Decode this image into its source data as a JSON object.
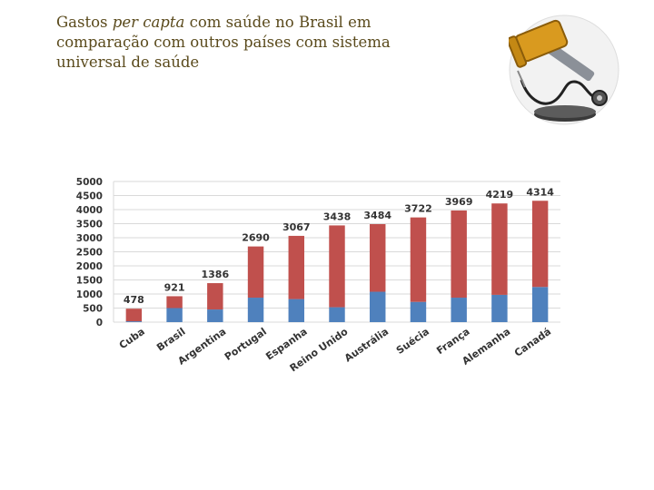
{
  "title": {
    "part1": "Gastos ",
    "italic": "per capta",
    "part2": " com saúde no Brasil em comparação com outros países com sistema universal de saúde"
  },
  "illustration": {
    "icon": "gavel-and-stethoscope-icon"
  },
  "chart_data": {
    "type": "bar",
    "stacked": true,
    "categories": [
      "Cuba",
      "Brasil",
      "Argentina",
      "Portugal",
      "Espanha",
      "Reino Unido",
      "Austrália",
      "Suécia",
      "França",
      "Alemanha",
      "Canadá"
    ],
    "totals": [
      478,
      921,
      1386,
      2690,
      3067,
      3438,
      3484,
      3722,
      3969,
      4219,
      4314
    ],
    "series": [
      {
        "values": [
          30,
          500,
          450,
          870,
          820,
          530,
          1080,
          720,
          870,
          970,
          1250
        ],
        "color": "#4f81bd"
      },
      {
        "values": [
          448,
          421,
          936,
          1820,
          2247,
          2908,
          2404,
          3002,
          3099,
          3249,
          3064
        ],
        "color": "#c0504d"
      }
    ],
    "yticks": [
      "0",
      "500",
      "1000",
      "1500",
      "2000",
      "2500",
      "3000",
      "3500",
      "4000",
      "4500",
      "5000"
    ],
    "ylim": [
      0,
      5000
    ],
    "grid": true,
    "legend": "none"
  }
}
